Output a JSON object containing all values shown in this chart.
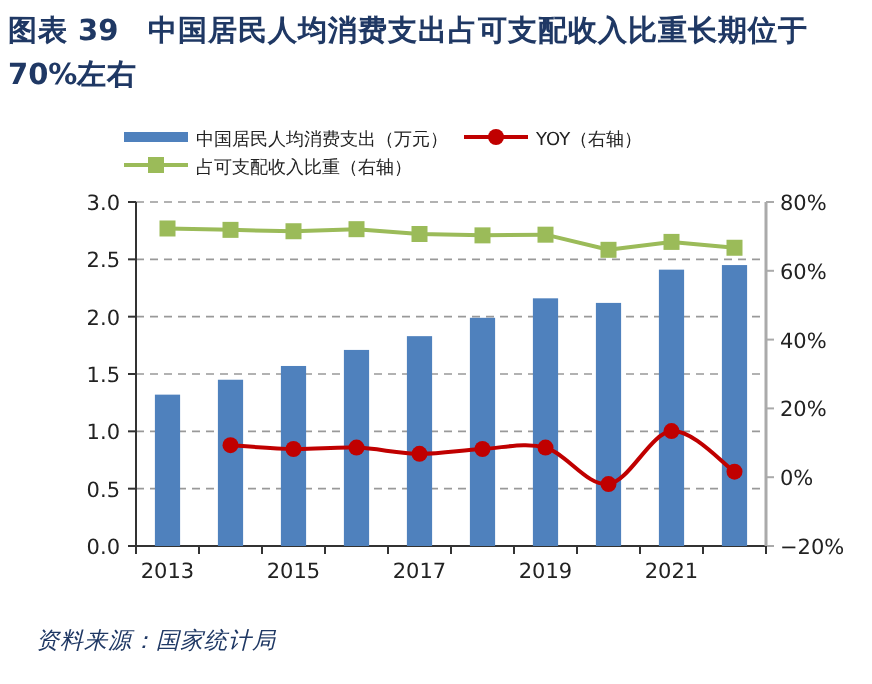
{
  "chart_data": {
    "type": "bar",
    "title": "图表 39　中国居民人均消费支出占可支配收入比重长期位于 70%左右",
    "categories": [
      "2013",
      null,
      "2015",
      null,
      "2017",
      null,
      "2019",
      null,
      "2021",
      null
    ],
    "series": [
      {
        "name": "中国居民人均消费支出（万元）",
        "color": "#4f81bd",
        "values": [
          1.32,
          1.45,
          1.57,
          1.71,
          1.83,
          1.99,
          2.16,
          2.12,
          2.41,
          2.45
        ]
      },
      {
        "name": "YOY（右轴）",
        "type": "line",
        "axis": "y2",
        "color": "#c00000",
        "marker": "circle",
        "values": [
          null,
          9.3,
          8.2,
          8.6,
          6.8,
          8.2,
          8.6,
          -2.0,
          13.4,
          1.6
        ]
      },
      {
        "name": "占可支配收入比重（右轴）",
        "type": "line",
        "axis": "y2",
        "color": "#9bbb59",
        "marker": "square",
        "values": [
          72.3,
          71.9,
          71.5,
          72.1,
          70.7,
          70.3,
          70.5,
          66.1,
          68.4,
          66.7
        ]
      }
    ],
    "ylim": [
      0,
      3
    ],
    "yticks": [
      {
        "value": 0,
        "label": "0.0"
      },
      {
        "value": 0.5,
        "label": "0.5"
      },
      {
        "value": 1,
        "label": "1.0"
      },
      {
        "value": 1.5,
        "label": "1.5"
      },
      {
        "value": 2,
        "label": "2.0"
      },
      {
        "value": 2.5,
        "label": "2.5"
      },
      {
        "value": 3,
        "label": "3.0"
      }
    ],
    "y2lim": [
      -20,
      80
    ],
    "y2ticks": [
      {
        "value": -20,
        "label": "−20%"
      },
      {
        "value": 0,
        "label": "0%"
      },
      {
        "value": 20,
        "label": "20%"
      },
      {
        "value": 40,
        "label": "40%"
      },
      {
        "value": 60,
        "label": "60%"
      },
      {
        "value": 80,
        "label": "80%"
      }
    ],
    "grid": "y",
    "legend": "top",
    "annotations": [
      "资料来源：国家统计局"
    ]
  }
}
